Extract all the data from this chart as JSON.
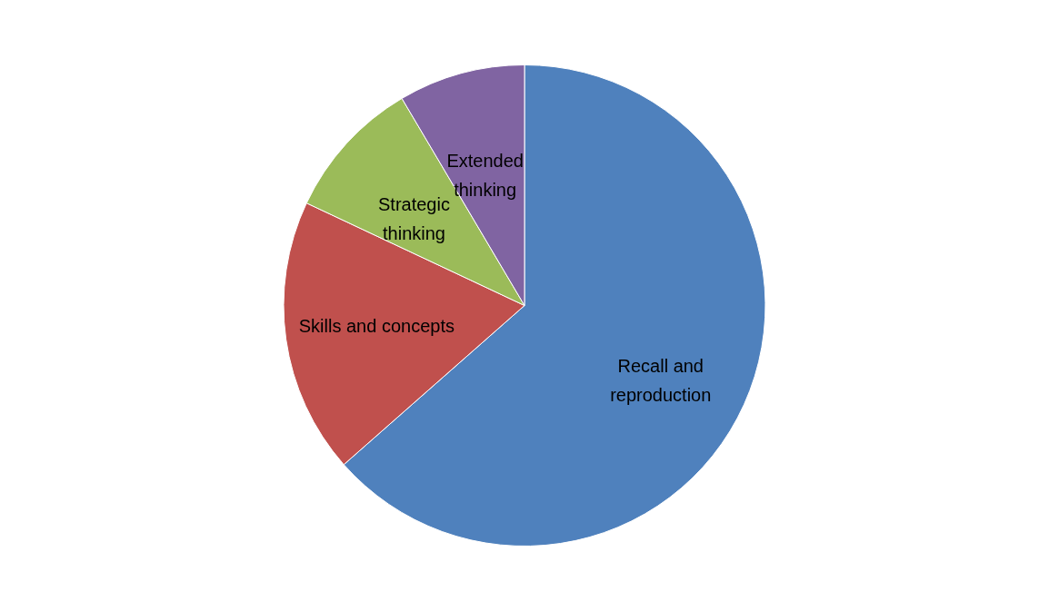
{
  "chart_data": {
    "type": "pie",
    "categories": [
      "Recall and reproduction",
      "Skills and concepts",
      "Strategic thinking",
      "Extended thinking"
    ],
    "values": [
      63.5,
      18.5,
      9.5,
      8.5
    ],
    "colors": [
      "#4f81bd",
      "#c0504d",
      "#9bbb59",
      "#8064a2"
    ]
  }
}
